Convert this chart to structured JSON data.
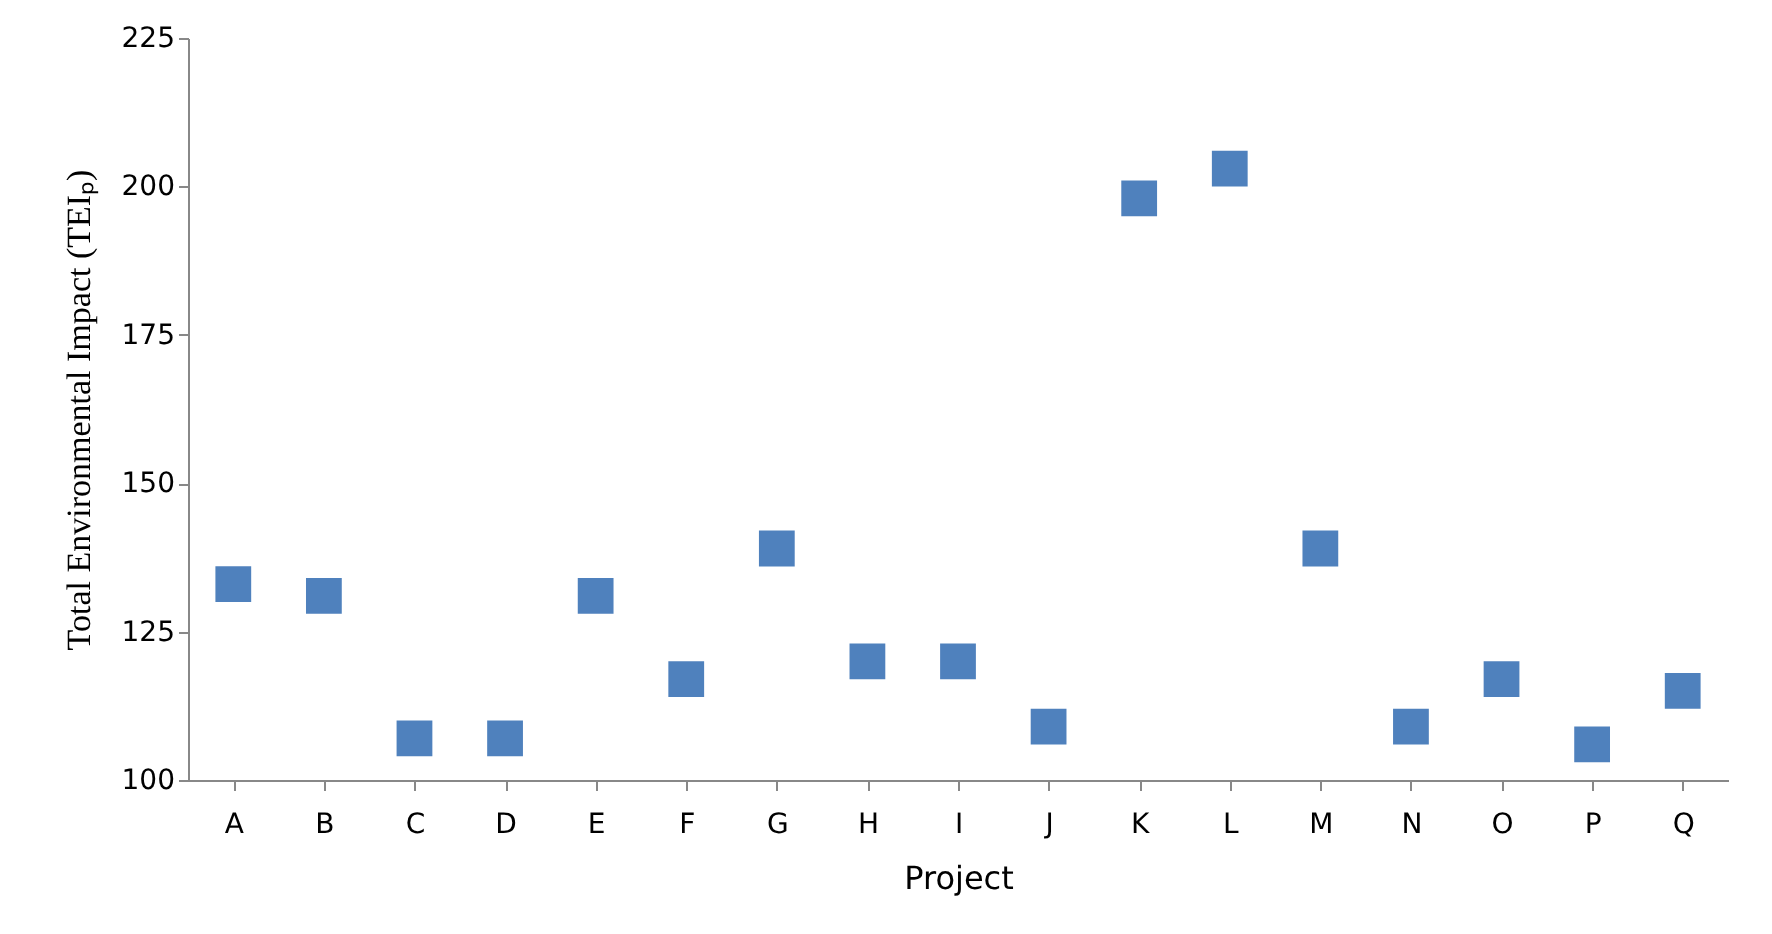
{
  "chart_data": {
    "type": "scatter",
    "xlabel": "Project",
    "ylabel": "Total Environmental Impact (TEIₚ)",
    "categories": [
      "A",
      "B",
      "C",
      "D",
      "E",
      "F",
      "G",
      "H",
      "I",
      "J",
      "K",
      "L",
      "M",
      "N",
      "O",
      "P",
      "Q"
    ],
    "series": [
      {
        "color": "#4f81bd",
        "values": [
          133,
          131,
          107,
          107,
          131,
          117,
          139,
          120,
          120,
          109,
          198,
          203,
          139,
          109,
          117,
          106,
          115
        ]
      }
    ],
    "ylim": [
      100,
      225
    ],
    "yticks": [
      100,
      125,
      150,
      175,
      200,
      225
    ],
    "grid": false,
    "marker": "square"
  }
}
